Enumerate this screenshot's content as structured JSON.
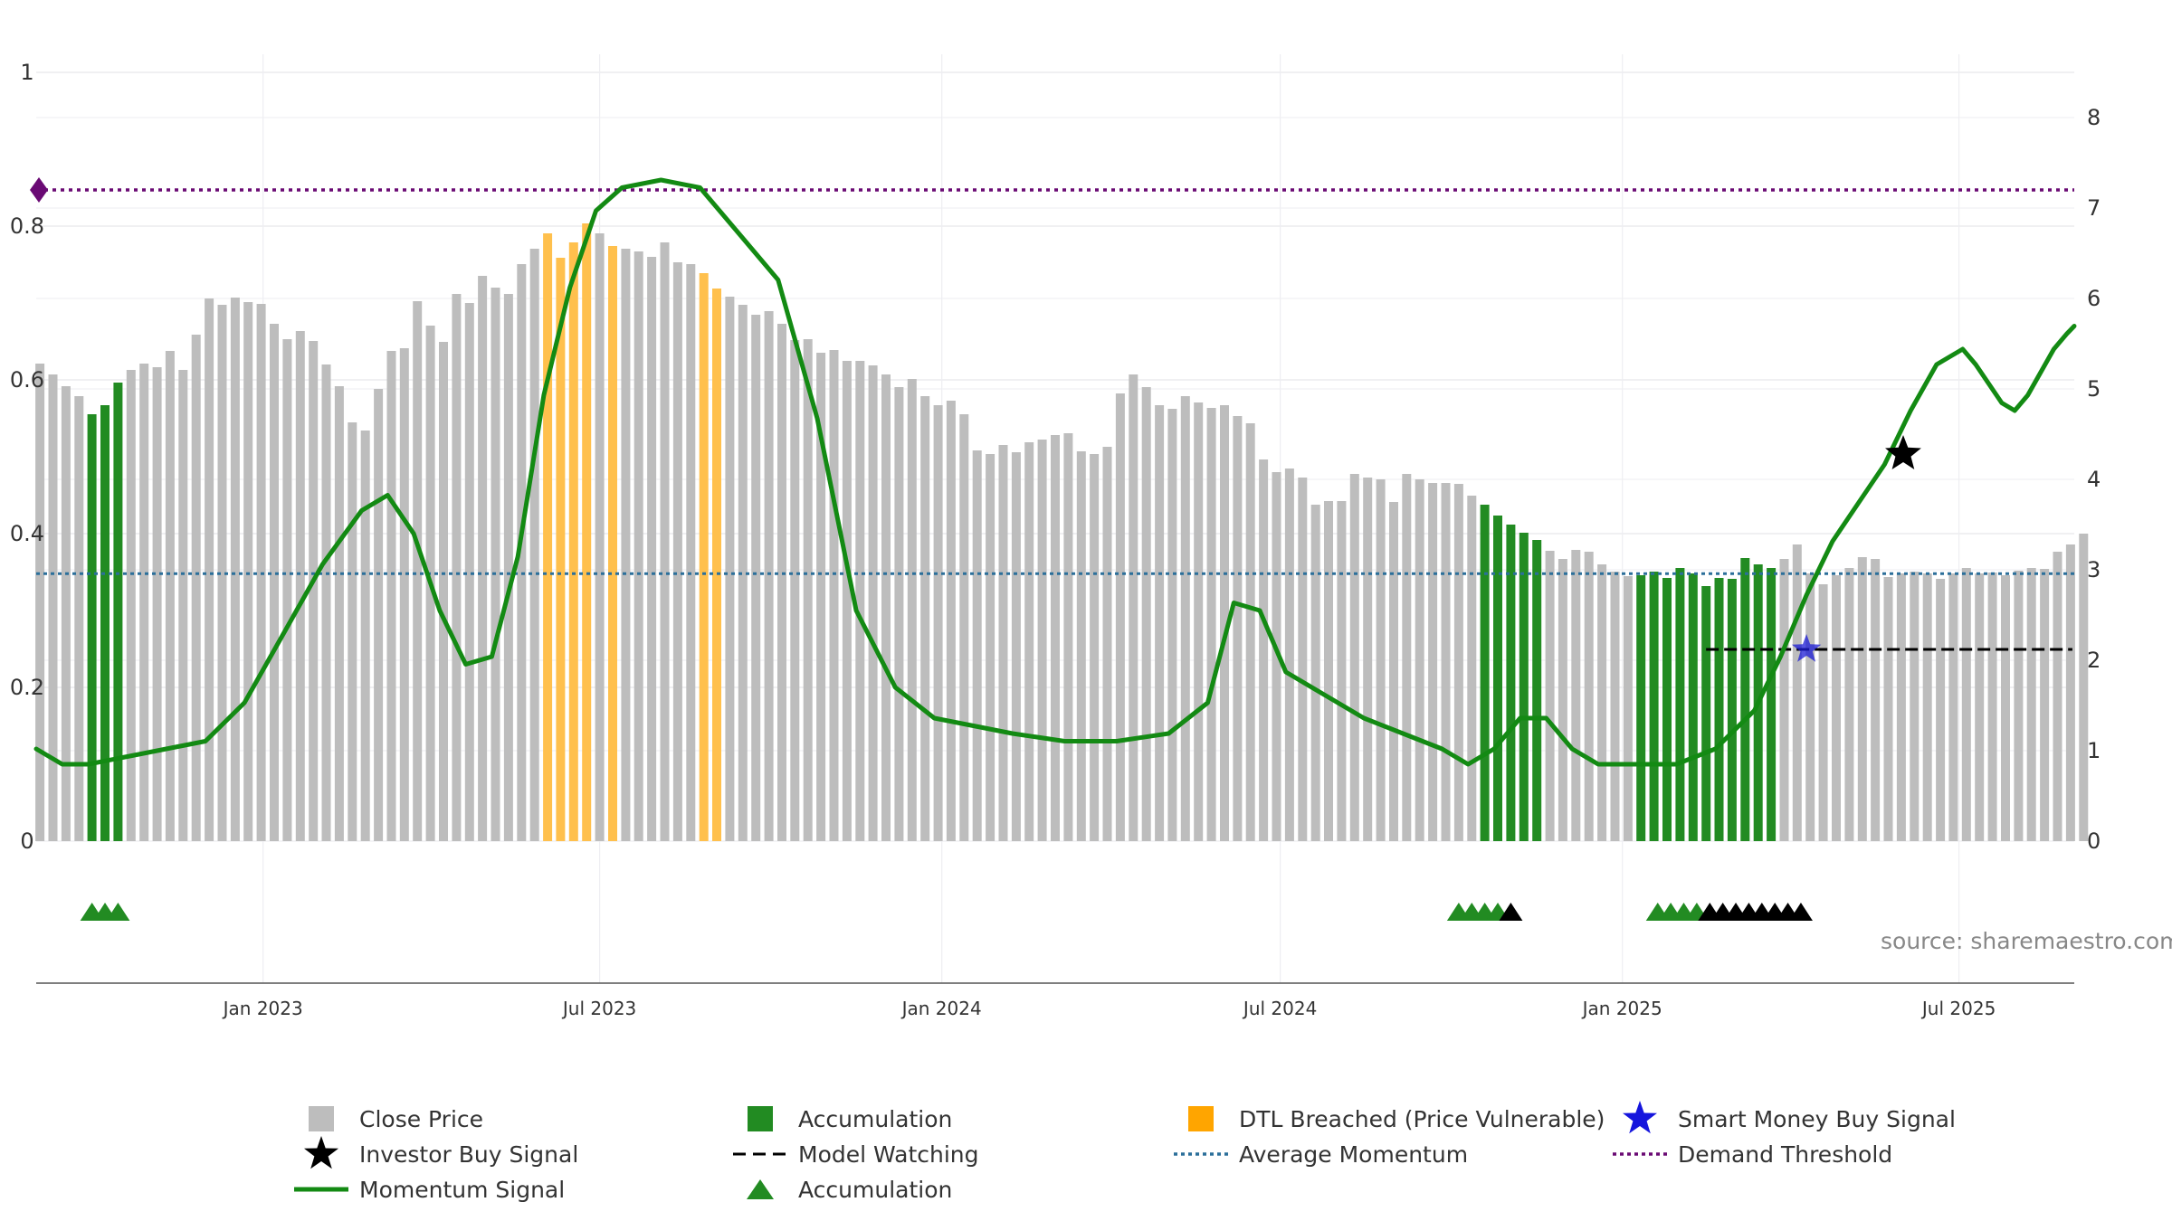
{
  "chart_data": {
    "type": "bar",
    "source_note": "source: sharemaestro.com",
    "left_axis": {
      "ylim": [
        0,
        1
      ],
      "ticks": [
        0,
        0.2,
        0.4,
        0.6,
        0.8,
        1
      ],
      "tick_labels": [
        "0",
        "0.2",
        "0.4",
        "0.6",
        "0.8",
        "1"
      ]
    },
    "right_axis": {
      "ylim": [
        0,
        8.5
      ],
      "ticks": [
        0,
        1,
        2,
        3,
        4,
        5,
        6,
        7,
        8
      ],
      "tick_labels": [
        "0",
        "1",
        "2",
        "3",
        "4",
        "5",
        "6",
        "7",
        "8"
      ]
    },
    "x_axis": {
      "range": [
        "2022-09-01",
        "2025-09-01"
      ],
      "ticks": [
        "2023-01-01",
        "2023-07-01",
        "2024-01-01",
        "2024-07-01",
        "2025-01-01",
        "2025-07-01"
      ],
      "tick_labels": [
        "Jan 2023",
        "Jul 2023",
        "Jan 2024",
        "Jul 2024",
        "Jan 2025",
        "Jul 2025"
      ]
    },
    "grid": true,
    "colors": {
      "close": "#bdbdbd",
      "accumulation": "#228b22",
      "dtl": "#ffc04d",
      "momentum": "#138a13",
      "average": "#2b6f9a",
      "threshold": "#6a0a74",
      "smart_money": "#1b1bd6",
      "investor": "#000000"
    },
    "bar_start": "2022-09-03",
    "bar_interval_days": 7,
    "close_price": [
      5.28,
      5.16,
      5.03,
      4.92,
      4.72,
      4.82,
      5.07,
      5.21,
      5.28,
      5.24,
      5.42,
      5.21,
      5.6,
      6.0,
      5.93,
      6.01,
      5.96,
      5.94,
      5.72,
      5.55,
      5.64,
      5.53,
      5.27,
      5.03,
      4.63,
      4.54,
      5.0,
      5.42,
      5.45,
      5.97,
      5.7,
      5.52,
      6.05,
      5.95,
      6.25,
      6.12,
      6.05,
      6.38,
      6.55,
      6.72,
      6.45,
      6.62,
      6.83,
      6.72,
      6.58,
      6.55,
      6.52,
      6.46,
      6.62,
      6.4,
      6.38,
      6.28,
      6.11,
      6.02,
      5.93,
      5.82,
      5.86,
      5.72,
      5.54,
      5.55,
      5.4,
      5.43,
      5.31,
      5.31,
      5.26,
      5.16,
      5.02,
      5.11,
      4.92,
      4.82,
      4.87,
      4.72,
      4.32,
      4.28,
      4.38,
      4.3,
      4.41,
      4.44,
      4.49,
      4.51,
      4.31,
      4.28,
      4.36,
      4.95,
      5.16,
      5.02,
      4.82,
      4.78,
      4.92,
      4.85,
      4.79,
      4.82,
      4.7,
      4.62,
      4.22,
      4.08,
      4.12,
      4.02,
      3.72,
      3.76,
      3.76,
      4.06,
      4.02,
      4.0,
      3.75,
      4.06,
      4.0,
      3.96,
      3.96,
      3.95,
      3.82,
      3.72,
      3.6,
      3.5,
      3.41,
      3.33,
      3.21,
      3.12,
      3.22,
      3.2,
      3.06,
      2.98,
      2.93,
      2.94,
      2.98,
      2.91,
      3.02,
      2.96,
      2.82,
      2.91,
      2.9,
      3.13,
      3.06,
      3.02,
      3.12,
      3.28,
      2.96,
      2.84,
      2.94,
      3.02,
      3.14,
      3.12,
      2.92,
      2.96,
      2.98,
      2.96,
      2.9,
      2.96,
      3.02,
      2.96,
      2.97,
      2.94,
      2.99,
      3.02,
      3.01,
      3.2,
      3.28,
      3.4
    ],
    "bar_category": [
      "close",
      "close",
      "close",
      "close",
      "accumulation",
      "accumulation",
      "accumulation",
      "close",
      "close",
      "close",
      "close",
      "close",
      "close",
      "close",
      "close",
      "close",
      "close",
      "close",
      "close",
      "close",
      "close",
      "close",
      "close",
      "close",
      "close",
      "close",
      "close",
      "close",
      "close",
      "close",
      "close",
      "close",
      "close",
      "close",
      "close",
      "close",
      "close",
      "close",
      "close",
      "dtl",
      "dtl",
      "dtl",
      "dtl",
      "close",
      "dtl",
      "close",
      "close",
      "close",
      "close",
      "close",
      "close",
      "dtl",
      "dtl",
      "close",
      "close",
      "close",
      "close",
      "close",
      "close",
      "close",
      "close",
      "close",
      "close",
      "close",
      "close",
      "close",
      "close",
      "close",
      "close",
      "close",
      "close",
      "close",
      "close",
      "close",
      "close",
      "close",
      "close",
      "close",
      "close",
      "close",
      "close",
      "close",
      "close",
      "close",
      "close",
      "close",
      "close",
      "close",
      "close",
      "close",
      "close",
      "close",
      "close",
      "close",
      "close",
      "close",
      "close",
      "close",
      "close",
      "close",
      "close",
      "close",
      "close",
      "close",
      "close",
      "close",
      "close",
      "close",
      "close",
      "close",
      "close",
      "accumulation",
      "accumulation",
      "accumulation",
      "accumulation",
      "accumulation",
      "close",
      "close",
      "close",
      "close",
      "close",
      "close",
      "close",
      "accumulation",
      "accumulation",
      "accumulation",
      "accumulation",
      "accumulation",
      "accumulation",
      "accumulation",
      "accumulation",
      "accumulation",
      "accumulation",
      "accumulation",
      "close",
      "close",
      "close",
      "close",
      "close",
      "close",
      "close",
      "close",
      "close",
      "close",
      "close",
      "close",
      "close",
      "close",
      "close",
      "close",
      "close",
      "close",
      "close",
      "close",
      "close",
      "close",
      "close",
      "close",
      "close",
      "close",
      "close",
      "close"
    ],
    "momentum_signal": [
      [
        "2022-09-01",
        0.12
      ],
      [
        "2022-09-15",
        0.1
      ],
      [
        "2022-09-29",
        0.1
      ],
      [
        "2022-10-20",
        0.11
      ],
      [
        "2022-11-10",
        0.12
      ],
      [
        "2022-12-01",
        0.13
      ],
      [
        "2022-12-22",
        0.18
      ],
      [
        "2023-01-12",
        0.27
      ],
      [
        "2023-02-02",
        0.36
      ],
      [
        "2023-02-23",
        0.43
      ],
      [
        "2023-03-09",
        0.45
      ],
      [
        "2023-03-23",
        0.4
      ],
      [
        "2023-04-06",
        0.3
      ],
      [
        "2023-04-20",
        0.23
      ],
      [
        "2023-05-04",
        0.24
      ],
      [
        "2023-05-18",
        0.37
      ],
      [
        "2023-06-01",
        0.58
      ],
      [
        "2023-06-15",
        0.72
      ],
      [
        "2023-06-29",
        0.82
      ],
      [
        "2023-07-13",
        0.85
      ],
      [
        "2023-08-03",
        0.86
      ],
      [
        "2023-08-24",
        0.85
      ],
      [
        "2023-09-14",
        0.79
      ],
      [
        "2023-10-05",
        0.73
      ],
      [
        "2023-10-26",
        0.55
      ],
      [
        "2023-11-16",
        0.3
      ],
      [
        "2023-12-07",
        0.2
      ],
      [
        "2023-12-28",
        0.16
      ],
      [
        "2024-01-18",
        0.15
      ],
      [
        "2024-02-08",
        0.14
      ],
      [
        "2024-03-07",
        0.13
      ],
      [
        "2024-04-04",
        0.13
      ],
      [
        "2024-05-02",
        0.14
      ],
      [
        "2024-05-23",
        0.18
      ],
      [
        "2024-06-06",
        0.31
      ],
      [
        "2024-06-20",
        0.3
      ],
      [
        "2024-07-04",
        0.22
      ],
      [
        "2024-07-25",
        0.19
      ],
      [
        "2024-08-15",
        0.16
      ],
      [
        "2024-09-05",
        0.14
      ],
      [
        "2024-09-26",
        0.12
      ],
      [
        "2024-10-10",
        0.1
      ],
      [
        "2024-10-24",
        0.12
      ],
      [
        "2024-11-07",
        0.16
      ],
      [
        "2024-11-21",
        0.16
      ],
      [
        "2024-12-05",
        0.12
      ],
      [
        "2024-12-19",
        0.1
      ],
      [
        "2025-01-09",
        0.1
      ],
      [
        "2025-01-30",
        0.1
      ],
      [
        "2025-02-20",
        0.12
      ],
      [
        "2025-03-13",
        0.17
      ],
      [
        "2025-03-27",
        0.24
      ],
      [
        "2025-04-10",
        0.32
      ],
      [
        "2025-04-24",
        0.39
      ],
      [
        "2025-05-08",
        0.44
      ],
      [
        "2025-05-22",
        0.49
      ],
      [
        "2025-06-05",
        0.56
      ],
      [
        "2025-06-19",
        0.62
      ],
      [
        "2025-07-03",
        0.64
      ],
      [
        "2025-07-10",
        0.62
      ],
      [
        "2025-07-24",
        0.57
      ],
      [
        "2025-07-31",
        0.56
      ],
      [
        "2025-08-07",
        0.58
      ],
      [
        "2025-08-21",
        0.64
      ],
      [
        "2025-08-28",
        0.66
      ],
      [
        "2025-09-01",
        0.67
      ]
    ],
    "average_momentum": 0.348,
    "demand_threshold": 0.847,
    "model_watching": {
      "start": "2025-02-15",
      "end": "2025-08-31",
      "value": 2.12
    },
    "smart_money_buy_signal": {
      "date": "2025-04-10",
      "value": 2.12
    },
    "investor_buy_signal": {
      "date": "2025-06-01",
      "value": 4.28
    },
    "accumulation_triangles": {
      "green": [
        "2022-10-01",
        "2022-10-08",
        "2022-10-15",
        "2024-10-05",
        "2024-10-12",
        "2024-10-19",
        "2024-10-26",
        "2025-01-20",
        "2025-01-27",
        "2025-02-03",
        "2025-02-10"
      ],
      "black": [
        "2024-11-02",
        "2025-02-17",
        "2025-02-24",
        "2025-03-03",
        "2025-03-10",
        "2025-03-17",
        "2025-03-24",
        "2025-03-31",
        "2025-04-07"
      ]
    },
    "legend": [
      {
        "label": "Close Price",
        "symbol": "square",
        "color": "#bdbdbd"
      },
      {
        "label": "Accumulation",
        "symbol": "square",
        "color": "#228b22"
      },
      {
        "label": "DTL Breached (Price Vulnerable)",
        "symbol": "square",
        "color": "#ffa500"
      },
      {
        "label": "Smart Money Buy Signal",
        "symbol": "star",
        "color": "#1515dd"
      },
      {
        "label": "Investor Buy Signal",
        "symbol": "star",
        "color": "#000000"
      },
      {
        "label": "Model Watching",
        "symbol": "dash",
        "color": "#000000"
      },
      {
        "label": "Average Momentum",
        "symbol": "dot",
        "color": "#2b6f9a"
      },
      {
        "label": "Demand Threshold",
        "symbol": "dot",
        "color": "#6a0a74"
      },
      {
        "label": "Momentum Signal",
        "symbol": "line",
        "color": "#138a13"
      },
      {
        "label": "Accumulation",
        "symbol": "triangle",
        "color": "#228b22"
      }
    ]
  }
}
